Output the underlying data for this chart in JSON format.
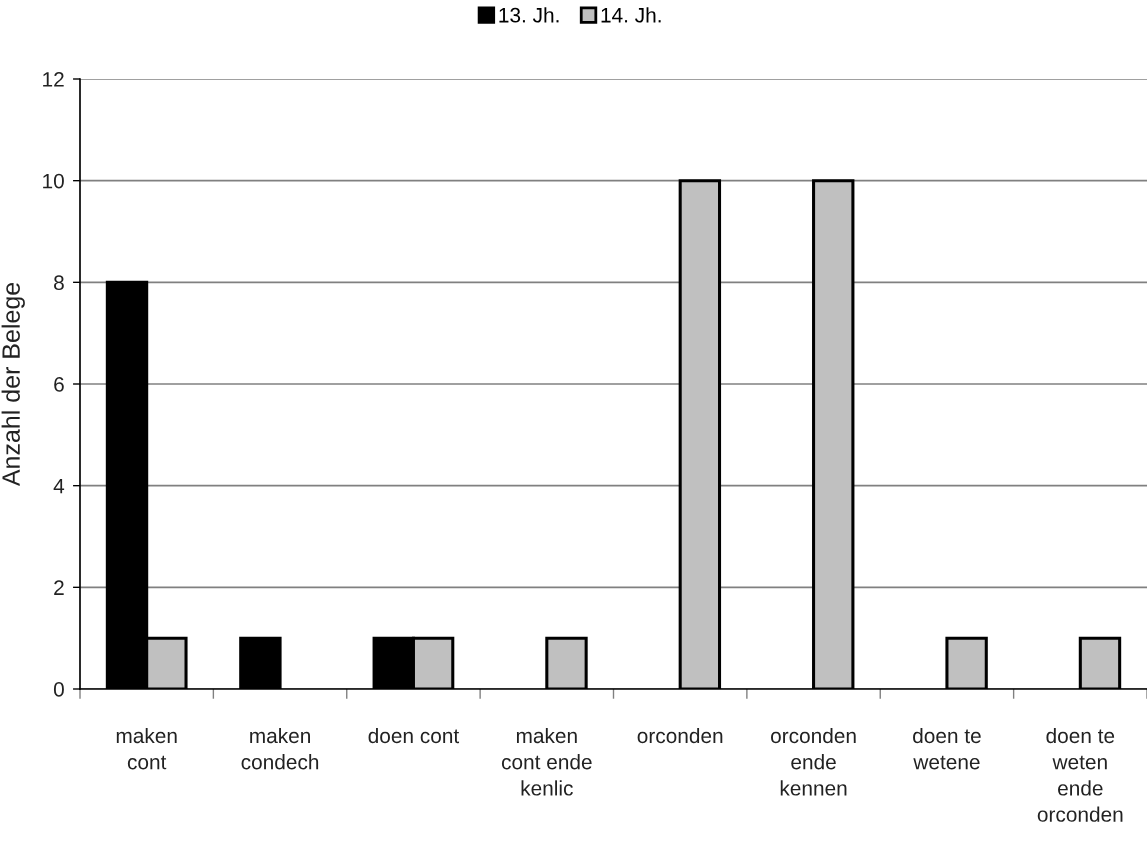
{
  "chart_data": {
    "type": "bar",
    "ylabel": "Anzahl der Belege",
    "categories": [
      "maken\ncont",
      "maken\ncondech",
      "doen cont",
      "maken\ncont ende\nkenlic",
      "orconden",
      "orconden\nende\nkennen",
      "doen te\nwetene",
      "doen te\nweten\nende\norconden"
    ],
    "series": [
      {
        "name": "13. Jh.",
        "color": "#000000",
        "values": [
          8,
          1,
          1,
          null,
          null,
          null,
          null,
          null
        ]
      },
      {
        "name": "14. Jh.",
        "color": "#c0c0c0",
        "values": [
          1,
          null,
          1,
          1,
          10,
          10,
          1,
          1
        ]
      }
    ],
    "ylim": [
      0,
      12
    ],
    "yticks": [
      0,
      2,
      4,
      6,
      8,
      10,
      12
    ],
    "grid": "y",
    "legend": "top"
  }
}
